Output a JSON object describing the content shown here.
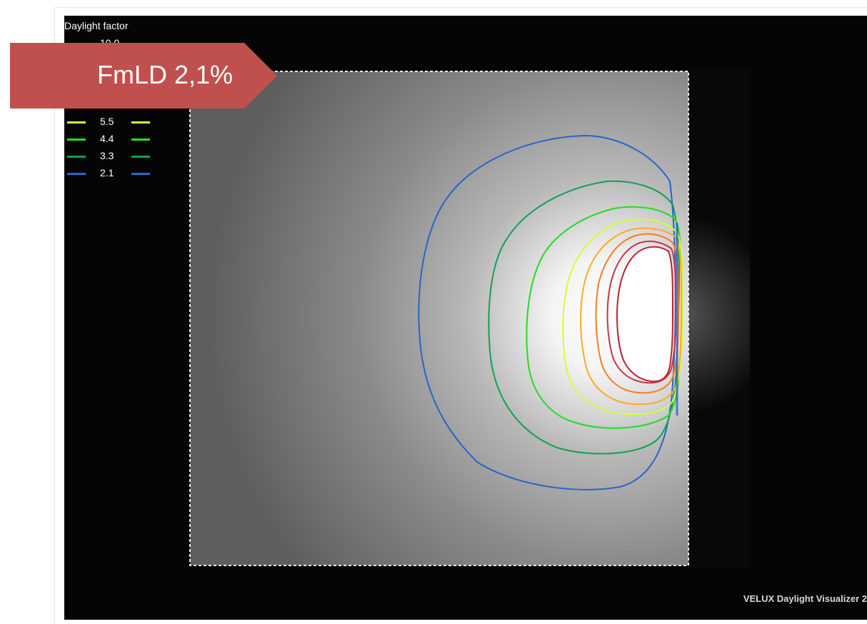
{
  "legend": {
    "title": "Daylight factor",
    "items": [
      {
        "value": "10.0",
        "color": "#ff1a1a"
      },
      {
        "value": "5.5",
        "color": "#d4ff33"
      },
      {
        "value": "4.4",
        "color": "#22dd22"
      },
      {
        "value": "3.3",
        "color": "#11a155"
      },
      {
        "value": "2.1",
        "color": "#2a64c8"
      }
    ]
  },
  "callout": {
    "label": "FmLD 2,1%",
    "color": "#c0504d"
  },
  "footer": {
    "watermark": "VELUX Daylight Visualizer 2"
  }
}
